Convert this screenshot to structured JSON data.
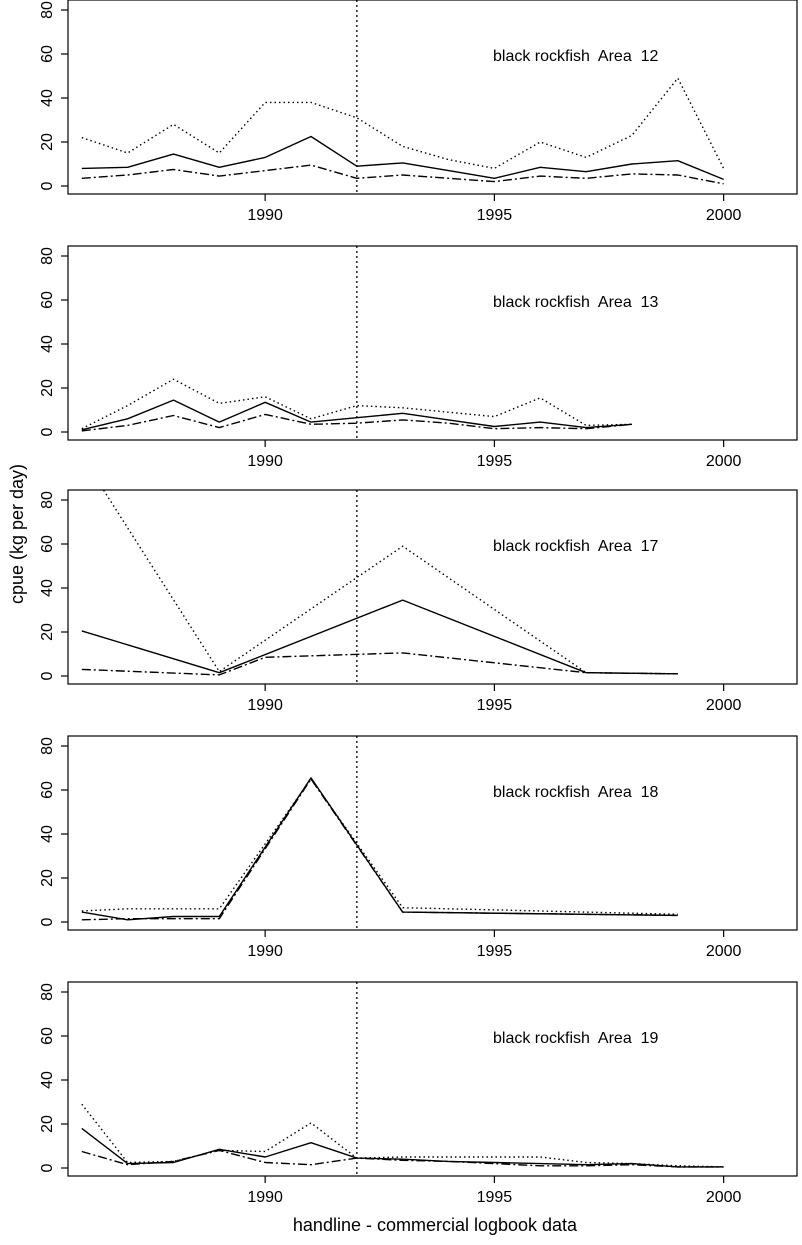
{
  "figure": {
    "xlabel": "handline - commercial logbook data",
    "ylabel": "cpue (kg per day)"
  },
  "chart_data": [
    {
      "type": "line",
      "panel_label": "black rockfish  Area  12",
      "xlim": [
        1985.7,
        2001.6
      ],
      "ylim": [
        0,
        80
      ],
      "xticks": [
        1990,
        1995,
        2000
      ],
      "yticks": [
        0,
        20,
        40,
        60,
        80
      ],
      "vline_x": 1992,
      "series": [
        {
          "style": "dotted",
          "x": [
            1986,
            1987,
            1988,
            1989,
            1990,
            1991,
            1992,
            1993,
            1994,
            1995,
            1996,
            1997,
            1998,
            1999,
            2000
          ],
          "y": [
            22,
            15,
            28,
            15,
            38,
            38,
            31,
            18,
            12,
            8,
            20,
            13,
            23,
            49,
            8
          ]
        },
        {
          "style": "solid",
          "x": [
            1986,
            1987,
            1988,
            1989,
            1990,
            1991,
            1992,
            1993,
            1994,
            1995,
            1996,
            1997,
            1998,
            1999,
            2000
          ],
          "y": [
            8,
            8.5,
            14.5,
            8.5,
            13,
            22.5,
            9,
            10.5,
            7,
            3.5,
            8.5,
            6.5,
            10,
            11.5,
            3
          ]
        },
        {
          "style": "dashdot",
          "x": [
            1986,
            1987,
            1988,
            1989,
            1990,
            1991,
            1992,
            1993,
            1994,
            1995,
            1996,
            1997,
            1998,
            1999,
            2000
          ],
          "y": [
            3.5,
            5,
            7.5,
            4.5,
            7,
            9.5,
            3.5,
            5,
            3.5,
            2,
            4.5,
            3.5,
            5.5,
            5,
            1
          ]
        }
      ]
    },
    {
      "type": "line",
      "panel_label": "black rockfish  Area  13",
      "xlim": [
        1985.7,
        2001.6
      ],
      "ylim": [
        0,
        80
      ],
      "xticks": [
        1990,
        1995,
        2000
      ],
      "yticks": [
        0,
        20,
        40,
        60,
        80
      ],
      "vline_x": 1992,
      "series": [
        {
          "style": "dotted",
          "x": [
            1986,
            1987,
            1988,
            1989,
            1990,
            1991,
            1992,
            1993,
            1994,
            1995,
            1996,
            1997,
            1998
          ],
          "y": [
            1.5,
            12,
            24,
            13,
            16,
            6,
            12,
            11,
            9,
            7,
            15.5,
            3,
            3.5
          ]
        },
        {
          "style": "solid",
          "x": [
            1986,
            1987,
            1988,
            1989,
            1990,
            1991,
            1992,
            1993,
            1994,
            1995,
            1996,
            1997,
            1998
          ],
          "y": [
            1,
            6,
            14.5,
            4.5,
            13.5,
            4.5,
            6.5,
            8.5,
            5.5,
            2.5,
            4.5,
            2,
            3.5
          ]
        },
        {
          "style": "dashdot",
          "x": [
            1986,
            1987,
            1988,
            1989,
            1990,
            1991,
            1992,
            1993,
            1994,
            1995,
            1996,
            1997,
            1998
          ],
          "y": [
            0.5,
            3,
            7.5,
            2,
            8,
            3.5,
            4,
            5.5,
            4,
            1.5,
            2,
            1.5,
            3.5
          ]
        }
      ]
    },
    {
      "type": "line",
      "panel_label": "black rockfish  Area  17",
      "xlim": [
        1985.7,
        2001.6
      ],
      "ylim": [
        0,
        80
      ],
      "xticks": [
        1990,
        1995,
        2000
      ],
      "yticks": [
        0,
        20,
        40,
        60,
        80
      ],
      "vline_x": 1992,
      "series": [
        {
          "style": "dotted",
          "x": [
            1986,
            1989,
            1993,
            1997,
            1999
          ],
          "y": [
            100,
            2,
            59,
            1.5,
            1
          ]
        },
        {
          "style": "solid",
          "x": [
            1986,
            1989,
            1993,
            1997,
            1999
          ],
          "y": [
            20.5,
            1.5,
            34.5,
            1.5,
            1
          ]
        },
        {
          "style": "dashdot",
          "x": [
            1986,
            1989,
            1990,
            1993,
            1997,
            1999
          ],
          "y": [
            3,
            0.5,
            8.5,
            10.5,
            1.5,
            1
          ]
        }
      ]
    },
    {
      "type": "line",
      "panel_label": "black rockfish  Area  18",
      "xlim": [
        1985.7,
        2001.6
      ],
      "ylim": [
        0,
        80
      ],
      "xticks": [
        1990,
        1995,
        2000
      ],
      "yticks": [
        0,
        20,
        40,
        60,
        80
      ],
      "vline_x": 1992,
      "series": [
        {
          "style": "dotted",
          "x": [
            1986,
            1987,
            1988,
            1989,
            1991,
            1993,
            1999
          ],
          "y": [
            5,
            6,
            6,
            6,
            65,
            6.5,
            3.5
          ]
        },
        {
          "style": "solid",
          "x": [
            1986,
            1987,
            1988,
            1989,
            1991,
            1993,
            1999
          ],
          "y": [
            4.5,
            1,
            2.5,
            2.5,
            65.5,
            4.5,
            3
          ]
        },
        {
          "style": "dashdot",
          "x": [
            1986,
            1987,
            1988,
            1989,
            1991,
            1993,
            1999
          ],
          "y": [
            1,
            1.5,
            1.5,
            1.5,
            65,
            4.5,
            3
          ]
        }
      ]
    },
    {
      "type": "line",
      "panel_label": "black rockfish  Area  19",
      "xlim": [
        1985.7,
        2001.6
      ],
      "ylim": [
        0,
        80
      ],
      "xticks": [
        1990,
        1995,
        2000
      ],
      "yticks": [
        0,
        20,
        40,
        60,
        80
      ],
      "vline_x": 1992,
      "series": [
        {
          "style": "dotted",
          "x": [
            1986,
            1987,
            1988,
            1989,
            1990,
            1991,
            1992,
            1993,
            1994,
            1995,
            1996,
            1997,
            1998,
            1999,
            2000
          ],
          "y": [
            29,
            2.5,
            3,
            8,
            7.5,
            20.5,
            4.5,
            5,
            5,
            5,
            5,
            2.5,
            2,
            1,
            0.5
          ]
        },
        {
          "style": "solid",
          "x": [
            1986,
            1987,
            1988,
            1989,
            1990,
            1991,
            1992,
            1993,
            1994,
            1995,
            1996,
            1997,
            1998,
            1999,
            2000
          ],
          "y": [
            18,
            2,
            2.5,
            8.5,
            5,
            11.5,
            4.5,
            4,
            3,
            2.5,
            2,
            1.5,
            2,
            0.5,
            0.5
          ]
        },
        {
          "style": "dashdot",
          "x": [
            1986,
            1987,
            1988,
            1989,
            1990,
            1991,
            1992,
            1993,
            1994,
            1995,
            1996,
            1997,
            1998,
            1999,
            2000
          ],
          "y": [
            7.5,
            1.5,
            3,
            8,
            2.5,
            1.5,
            4.5,
            3.5,
            3,
            2,
            1,
            1,
            1.5,
            0.5,
            0.5
          ]
        }
      ]
    }
  ]
}
